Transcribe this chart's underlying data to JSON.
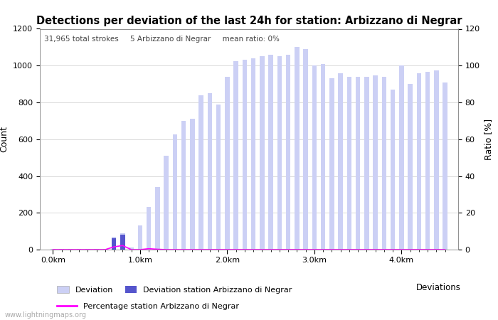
{
  "title": "Detections per deviation of the last 24h for station: Arbizzano di Negrar",
  "subtitle": "31,965 total strokes     5 Arbizzano di Negrar     mean ratio: 0%",
  "xlabel": "Deviations",
  "ylabel_left": "Count",
  "ylabel_right": "Ratio [%]",
  "watermark": "www.lightningmaps.org",
  "ylim_left": [
    0,
    1200
  ],
  "ylim_right": [
    0,
    120
  ],
  "yticks_left": [
    0,
    200,
    400,
    600,
    800,
    1000,
    1200
  ],
  "yticks_right": [
    0,
    20,
    40,
    60,
    80,
    100,
    120
  ],
  "bar_width": 0.055,
  "bar_color_light": "#ccd0f5",
  "bar_color_dark": "#5555cc",
  "line_color": "#ff00ff",
  "bg_color": "#ffffff",
  "grid_color": "#cccccc",
  "x_tick_labels": [
    "0.0km",
    "1.0km",
    "2.0km",
    "3.0km",
    "4.0km"
  ],
  "x_tick_positions": [
    0.0,
    1.0,
    2.0,
    3.0,
    4.0
  ],
  "deviations": [
    0.0,
    0.1,
    0.2,
    0.3,
    0.4,
    0.5,
    0.6,
    0.7,
    0.8,
    0.9,
    1.0,
    1.1,
    1.2,
    1.3,
    1.4,
    1.5,
    1.6,
    1.7,
    1.8,
    1.9,
    2.0,
    2.1,
    2.2,
    2.3,
    2.4,
    2.5,
    2.6,
    2.7,
    2.8,
    2.9,
    3.0,
    3.1,
    3.2,
    3.3,
    3.4,
    3.5,
    3.6,
    3.7,
    3.8,
    3.9,
    4.0,
    4.1,
    4.2,
    4.3,
    4.4,
    4.5
  ],
  "counts_total": [
    5,
    5,
    5,
    5,
    5,
    5,
    5,
    70,
    90,
    10,
    130,
    230,
    340,
    510,
    625,
    700,
    710,
    840,
    850,
    790,
    940,
    1025,
    1030,
    1040,
    1050,
    1060,
    1050,
    1060,
    1100,
    1090,
    1000,
    1010,
    930,
    960,
    940,
    940,
    940,
    945,
    940,
    870,
    1000,
    900,
    960,
    965,
    975,
    910
  ],
  "counts_station": [
    0,
    0,
    0,
    0,
    0,
    0,
    0,
    60,
    80,
    0,
    0,
    0,
    0,
    0,
    0,
    0,
    0,
    0,
    0,
    0,
    0,
    0,
    0,
    0,
    0,
    0,
    0,
    0,
    0,
    0,
    0,
    0,
    0,
    0,
    0,
    0,
    0,
    0,
    0,
    0,
    0,
    0,
    0,
    0,
    0,
    0
  ],
  "percentages": [
    0,
    0,
    0,
    0,
    0,
    0,
    0,
    1.5,
    2.2,
    0,
    0,
    0.5,
    0.2,
    0,
    0,
    0,
    0,
    0,
    0,
    0,
    0,
    0,
    0,
    0,
    0,
    0,
    0,
    0,
    0,
    0,
    0,
    0,
    0,
    0,
    0,
    0,
    0,
    0,
    0,
    0,
    0,
    0,
    0,
    0,
    0,
    0
  ],
  "title_fontsize": 10.5,
  "subtitle_fontsize": 7.5,
  "axis_fontsize": 9,
  "tick_fontsize": 8,
  "legend_fontsize": 8,
  "watermark_fontsize": 7
}
